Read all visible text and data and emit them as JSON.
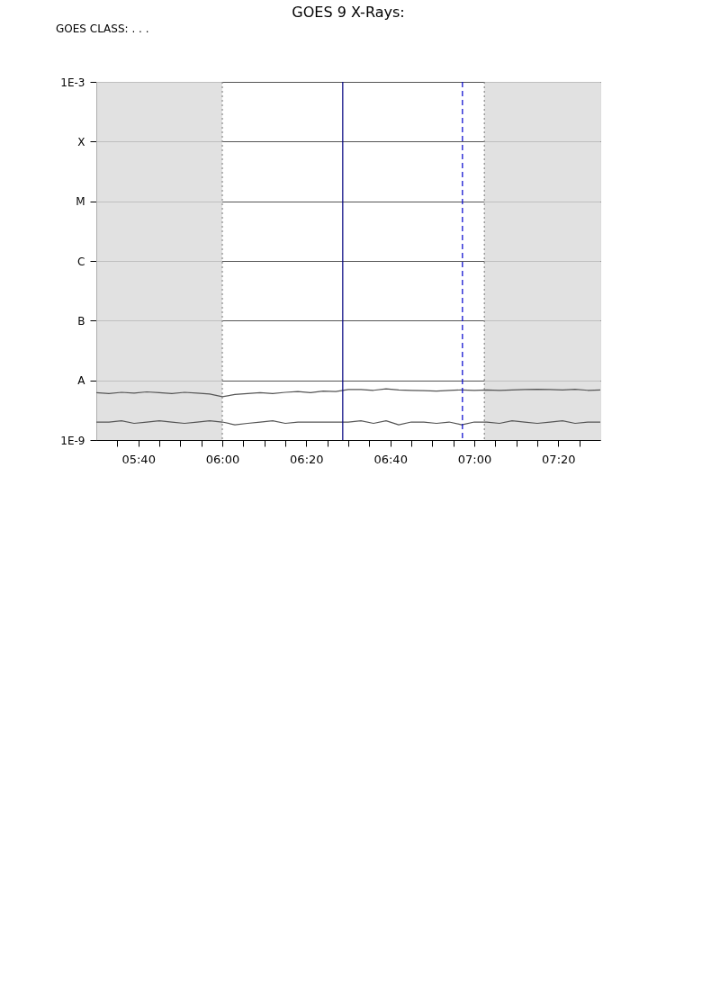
{
  "chart_data": {
    "type": "line",
    "title": "GOES 9 X-Rays:",
    "annotations": [
      "GOES CLASS: .  .  ."
    ],
    "x": [
      5.5,
      5.55,
      5.6,
      5.65,
      5.7,
      5.75,
      5.8,
      5.85,
      5.9,
      5.95,
      6.0,
      6.05,
      6.1,
      6.15,
      6.2,
      6.25,
      6.3,
      6.35,
      6.4,
      6.45,
      6.5,
      6.55,
      6.6,
      6.65,
      6.7,
      6.75,
      6.8,
      6.85,
      6.9,
      6.95,
      7.0,
      7.05,
      7.1,
      7.15,
      7.2,
      7.25,
      7.3,
      7.35,
      7.4,
      7.45,
      7.5
    ],
    "series": [
      {
        "color": "#555555",
        "values": [
          6.2e-09,
          6e-09,
          6.3e-09,
          6.1e-09,
          6.4e-09,
          6.2e-09,
          6e-09,
          6.3e-09,
          6.1e-09,
          5.9e-09,
          5.3e-09,
          5.8e-09,
          6e-09,
          6.2e-09,
          6e-09,
          6.3e-09,
          6.5e-09,
          6.2e-09,
          6.6e-09,
          6.5e-09,
          7e-09,
          7e-09,
          6.8e-09,
          7.2e-09,
          6.9e-09,
          6.8e-09,
          6.7e-09,
          6.6e-09,
          6.8e-09,
          6.9e-09,
          6.8e-09,
          6.9e-09,
          6.8e-09,
          6.9e-09,
          7e-09,
          7.1e-09,
          7e-09,
          6.9e-09,
          7.1e-09,
          6.8e-09,
          6.9e-09
        ]
      },
      {
        "color": "#555555",
        "values": [
          2e-09,
          2e-09,
          2.1e-09,
          1.9e-09,
          2e-09,
          2.1e-09,
          2e-09,
          1.9e-09,
          2e-09,
          2.1e-09,
          2e-09,
          1.8e-09,
          1.9e-09,
          2e-09,
          2.1e-09,
          1.9e-09,
          2e-09,
          2e-09,
          2e-09,
          2e-09,
          2e-09,
          2.1e-09,
          1.9e-09,
          2.1e-09,
          1.8e-09,
          2e-09,
          2e-09,
          1.9e-09,
          2e-09,
          1.8e-09,
          2e-09,
          2e-09,
          1.9e-09,
          2.1e-09,
          2e-09,
          1.9e-09,
          2e-09,
          2.1e-09,
          1.9e-09,
          2e-09,
          2e-09
        ]
      }
    ],
    "xlim": [
      5.5,
      7.5
    ],
    "xticks": [
      {
        "value": 5.5833,
        "label": null
      },
      {
        "value": 5.6667,
        "label": "05:40"
      },
      {
        "value": 5.75,
        "label": null
      },
      {
        "value": 5.8333,
        "label": null
      },
      {
        "value": 5.9167,
        "label": null
      },
      {
        "value": 6.0,
        "label": "06:00"
      },
      {
        "value": 6.0833,
        "label": null
      },
      {
        "value": 6.1667,
        "label": null
      },
      {
        "value": 6.25,
        "label": null
      },
      {
        "value": 6.3333,
        "label": "06:20"
      },
      {
        "value": 6.4167,
        "label": null
      },
      {
        "value": 6.5,
        "label": null
      },
      {
        "value": 6.5833,
        "label": null
      },
      {
        "value": 6.6667,
        "label": "06:40"
      },
      {
        "value": 6.75,
        "label": null
      },
      {
        "value": 6.8333,
        "label": null
      },
      {
        "value": 6.9167,
        "label": null
      },
      {
        "value": 7.0,
        "label": "07:00"
      },
      {
        "value": 7.0833,
        "label": null
      },
      {
        "value": 7.1667,
        "label": null
      },
      {
        "value": 7.25,
        "label": null
      },
      {
        "value": 7.3333,
        "label": "07:20"
      },
      {
        "value": 7.4167,
        "label": null
      }
    ],
    "ylim": [
      1e-09,
      0.001
    ],
    "yticks": [
      {
        "value": 1e-09,
        "label": "1E-9"
      },
      {
        "value": 1e-08,
        "label": "A"
      },
      {
        "value": 1e-07,
        "label": "B"
      },
      {
        "value": 1e-06,
        "label": "C"
      },
      {
        "value": 1e-05,
        "label": "M"
      },
      {
        "value": 0.0001,
        "label": "X"
      },
      {
        "value": 0.001,
        "label": "1E-3"
      }
    ],
    "log": true,
    "grid": "y",
    "bands": [
      {
        "axis": "x",
        "from": 5.5,
        "to": 6.0,
        "color": "#d9d9d9"
      },
      {
        "axis": "x",
        "from": 7.04,
        "to": 7.5,
        "color": "#d9d9d9"
      }
    ],
    "ref_lines": [
      {
        "axis": "x",
        "value": 6.0,
        "color": "#888888",
        "line_style": "dotted"
      },
      {
        "axis": "x",
        "value": 6.478,
        "color": "#000080",
        "line_style": "solid"
      },
      {
        "axis": "x",
        "value": 6.953,
        "color": "#0000cc",
        "line_style": "dashed"
      },
      {
        "axis": "x",
        "value": 7.04,
        "color": "#888888",
        "line_style": "dotted"
      }
    ]
  }
}
